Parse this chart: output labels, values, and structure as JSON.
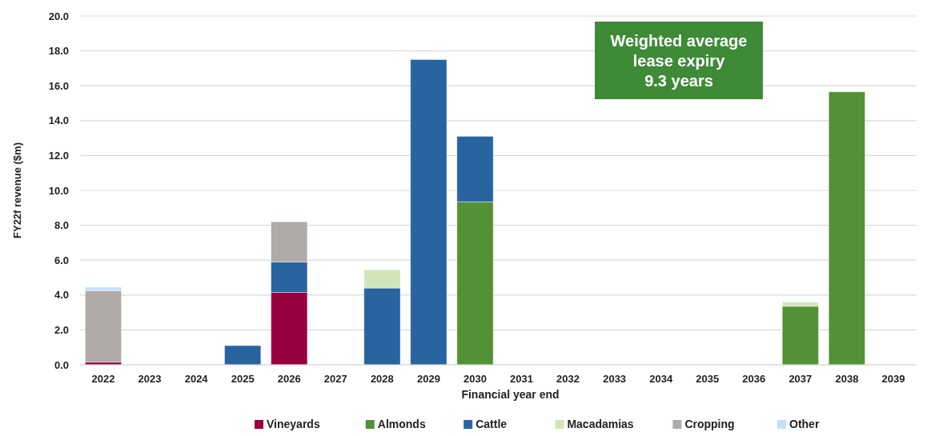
{
  "chart_data": {
    "type": "bar",
    "stacked": true,
    "xlabel": "Financial year end",
    "ylabel": "FY22f  revenue ($m)",
    "categories": [
      "2022",
      "2023",
      "2024",
      "2025",
      "2026",
      "2027",
      "2028",
      "2029",
      "2030",
      "2031",
      "2032",
      "2033",
      "2034",
      "2035",
      "2036",
      "2037",
      "2038",
      "2039"
    ],
    "series": [
      {
        "name": "Vineyards",
        "color": "#990040",
        "values": [
          0.15,
          0,
          0,
          0,
          4.15,
          0,
          0,
          0,
          0,
          0,
          0,
          0,
          0,
          0,
          0,
          0,
          0,
          0
        ]
      },
      {
        "name": "Almonds",
        "color": "#539137",
        "values": [
          0,
          0,
          0,
          0,
          0,
          0,
          0,
          0,
          9.35,
          0,
          0,
          0,
          0,
          0,
          0,
          3.35,
          15.65,
          0
        ]
      },
      {
        "name": "Cattle",
        "color": "#2764a0",
        "values": [
          0,
          0,
          0,
          1.1,
          1.75,
          0,
          4.4,
          17.5,
          3.75,
          0,
          0,
          0,
          0,
          0,
          0,
          0,
          0,
          0
        ]
      },
      {
        "name": "Macadamias",
        "color": "#d0e6b8",
        "values": [
          0,
          0,
          0,
          0,
          0,
          0,
          1.05,
          0,
          0,
          0,
          0,
          0,
          0,
          0,
          0,
          0.25,
          0,
          0
        ]
      },
      {
        "name": "Cropping",
        "color": "#b0aaa9",
        "values": [
          4.1,
          0,
          0,
          0,
          2.3,
          0,
          0,
          0,
          0,
          0,
          0,
          0,
          0,
          0,
          0,
          0,
          0,
          0
        ]
      },
      {
        "name": "Other",
        "color": "#c3dff8",
        "values": [
          0.2,
          0,
          0,
          0,
          0,
          0,
          0,
          0,
          0,
          0,
          0,
          0,
          0,
          0,
          0,
          0,
          0,
          0
        ]
      }
    ],
    "ylim": [
      0,
      20
    ],
    "yticks": [
      {
        "value": 0,
        "label": "0.0"
      },
      {
        "value": 2,
        "label": "2.0"
      },
      {
        "value": 4,
        "label": "4.0"
      },
      {
        "value": 6,
        "label": "6.0"
      },
      {
        "value": 8,
        "label": "8.0"
      },
      {
        "value": 10,
        "label": "10.0"
      },
      {
        "value": 12,
        "label": "12.0"
      },
      {
        "value": 14,
        "label": "14.0"
      },
      {
        "value": 16,
        "label": "16.0"
      },
      {
        "value": 18,
        "label": "18.0"
      },
      {
        "value": 20,
        "label": "20.0"
      }
    ],
    "grid": "y",
    "legend": "bottom",
    "annotations": [
      "Weighted average\nlease expiry\n9.3 years"
    ]
  }
}
